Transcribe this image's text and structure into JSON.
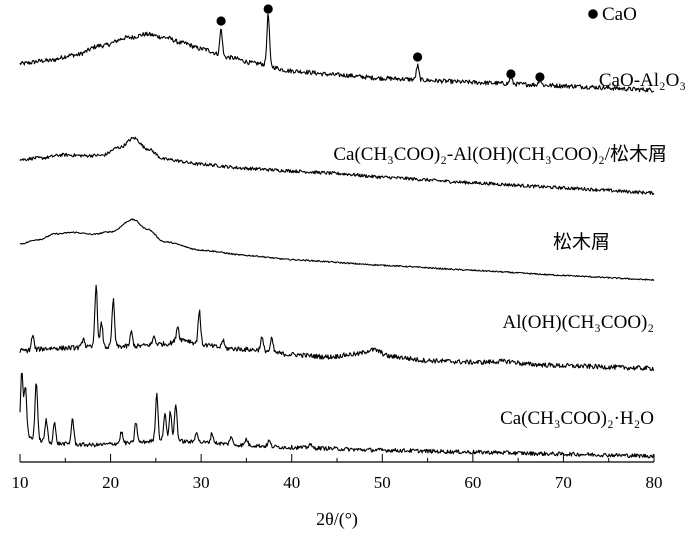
{
  "chart_data": {
    "type": "line",
    "title": "",
    "xlabel": "2θ/(°)",
    "ylabel": "",
    "xlim": [
      10,
      80
    ],
    "xticks": [
      "10",
      "20",
      "30",
      "40",
      "50",
      "60",
      "70",
      "80"
    ],
    "legend": {
      "marker": "●",
      "label": "CaO",
      "position": "top-right"
    },
    "series": [
      {
        "name": "CaO-Al₂O₃",
        "profile": [
          [
            10,
            0.1
          ],
          [
            13,
            0.16
          ],
          [
            16,
            0.26
          ],
          [
            19,
            0.42
          ],
          [
            22,
            0.56
          ],
          [
            24,
            0.62
          ],
          [
            26,
            0.58
          ],
          [
            28,
            0.5
          ],
          [
            30,
            0.42
          ],
          [
            33,
            0.3
          ],
          [
            36,
            0.22
          ],
          [
            40,
            0.12
          ],
          [
            45,
            0.08
          ],
          [
            50,
            0.05
          ],
          [
            60,
            0.03
          ],
          [
            70,
            0.02
          ],
          [
            80,
            0.0
          ]
        ],
        "peaks": [
          [
            32.2,
            0.42
          ],
          [
            37.4,
            0.8
          ],
          [
            53.9,
            0.22
          ],
          [
            64.2,
            0.1
          ],
          [
            67.4,
            0.09
          ]
        ],
        "noise": 0.035
      },
      {
        "name": "Ca(CH₃COO)₂-Al(OH)(CH₃COO)₂/松木屑",
        "profile": [
          [
            10,
            0.1
          ],
          [
            12,
            0.14
          ],
          [
            15,
            0.22
          ],
          [
            17,
            0.22
          ],
          [
            19,
            0.24
          ],
          [
            21,
            0.4
          ],
          [
            22.6,
            0.58
          ],
          [
            24,
            0.4
          ],
          [
            26,
            0.22
          ],
          [
            30,
            0.16
          ],
          [
            35,
            0.12
          ],
          [
            40,
            0.11
          ],
          [
            45,
            0.1
          ],
          [
            50,
            0.07
          ],
          [
            60,
            0.04
          ],
          [
            70,
            0.02
          ],
          [
            80,
            0.0
          ]
        ],
        "peaks": [],
        "noise": 0.03
      },
      {
        "name": "松木屑",
        "profile": [
          [
            10,
            0.15
          ],
          [
            12,
            0.24
          ],
          [
            14,
            0.36
          ],
          [
            16,
            0.4
          ],
          [
            18,
            0.38
          ],
          [
            20,
            0.44
          ],
          [
            22.5,
            0.68
          ],
          [
            24,
            0.52
          ],
          [
            26,
            0.3
          ],
          [
            30,
            0.18
          ],
          [
            35,
            0.12
          ],
          [
            40,
            0.08
          ],
          [
            50,
            0.05
          ],
          [
            60,
            0.03
          ],
          [
            70,
            0.01
          ],
          [
            80,
            0.0
          ]
        ],
        "peaks": [],
        "noise": 0.012
      },
      {
        "name": "Al(OH)(CH₃COO)₂",
        "profile": [
          [
            10,
            0.08
          ],
          [
            14,
            0.12
          ],
          [
            18,
            0.14
          ],
          [
            22,
            0.16
          ],
          [
            26,
            0.2
          ],
          [
            28,
            0.26
          ],
          [
            30,
            0.2
          ],
          [
            33,
            0.16
          ],
          [
            36,
            0.15
          ],
          [
            40,
            0.1
          ],
          [
            44,
            0.08
          ],
          [
            47,
            0.12
          ],
          [
            49,
            0.18
          ],
          [
            51,
            0.1
          ],
          [
            55,
            0.06
          ],
          [
            60,
            0.05
          ],
          [
            64,
            0.07
          ],
          [
            66,
            0.04
          ],
          [
            70,
            0.03
          ],
          [
            80,
            0.02
          ]
        ],
        "peaks": [
          [
            11.4,
            0.18
          ],
          [
            17.0,
            0.12
          ],
          [
            18.4,
            0.78
          ],
          [
            19.0,
            0.3
          ],
          [
            20.3,
            0.58
          ],
          [
            22.3,
            0.18
          ],
          [
            24.8,
            0.1
          ],
          [
            27.4,
            0.18
          ],
          [
            29.8,
            0.42
          ],
          [
            32.4,
            0.1
          ],
          [
            36.7,
            0.16
          ],
          [
            37.8,
            0.16
          ]
        ],
        "noise": 0.03
      },
      {
        "name": "Ca(CH₃COO)₂·H₂O",
        "profile": [
          [
            10,
            0.15
          ],
          [
            14,
            0.06
          ],
          [
            18,
            0.05
          ],
          [
            22,
            0.08
          ],
          [
            26,
            0.12
          ],
          [
            30,
            0.1
          ],
          [
            35,
            0.07
          ],
          [
            40,
            0.05
          ],
          [
            50,
            0.03
          ],
          [
            60,
            0.02
          ],
          [
            70,
            0.01
          ],
          [
            80,
            0.0
          ]
        ],
        "peaks": [
          [
            10.2,
            0.8
          ],
          [
            10.6,
            0.6
          ],
          [
            11.8,
            0.72
          ],
          [
            12.9,
            0.28
          ],
          [
            13.8,
            0.26
          ],
          [
            15.8,
            0.32
          ],
          [
            21.2,
            0.14
          ],
          [
            22.8,
            0.26
          ],
          [
            25.1,
            0.58
          ],
          [
            26.0,
            0.34
          ],
          [
            26.6,
            0.36
          ],
          [
            27.2,
            0.46
          ],
          [
            29.5,
            0.14
          ],
          [
            31.2,
            0.12
          ],
          [
            33.3,
            0.1
          ],
          [
            35.0,
            0.08
          ],
          [
            37.5,
            0.07
          ],
          [
            42.0,
            0.05
          ]
        ],
        "noise": 0.025
      }
    ],
    "cao_markers_2theta": [
      32.2,
      37.4,
      53.9,
      64.2,
      67.4
    ]
  }
}
